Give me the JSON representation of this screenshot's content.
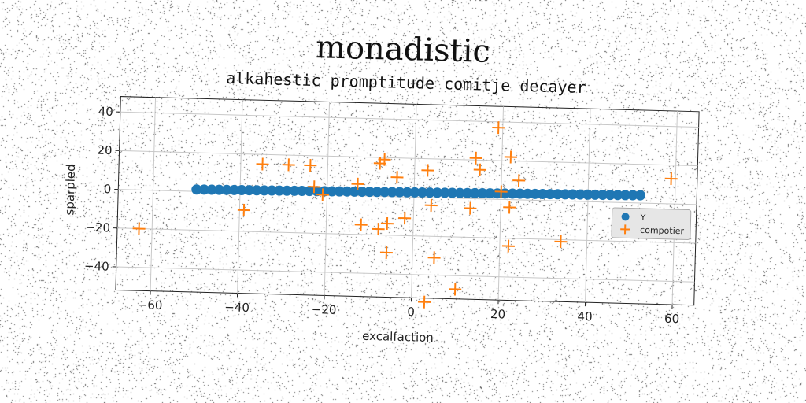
{
  "suptitle": "monadistic",
  "chart_data": {
    "type": "scatter",
    "title": "alkahestic promptitude comitje decayer",
    "xlabel": "excalfaction",
    "ylabel": "sparpled",
    "xlim": [
      -68,
      65
    ],
    "ylim": [
      -52,
      48
    ],
    "xticks": [
      -60,
      -40,
      -20,
      0,
      20,
      40,
      60
    ],
    "yticks": [
      -40,
      -20,
      0,
      20,
      40
    ],
    "xtick_labels": [
      "−60",
      "−40",
      "−20",
      "0",
      "20",
      "40",
      "60"
    ],
    "ytick_labels": [
      "−40",
      "−20",
      "0",
      "20",
      "40"
    ],
    "grid": true,
    "legend_position": "center-right",
    "series": [
      {
        "name": "Y",
        "marker": "circle",
        "color": "#1f77b4",
        "line": {
          "x_start": -50,
          "x_end": 52,
          "y_start": 1,
          "y_end": 4,
          "count": 60
        }
      },
      {
        "name": "compotier",
        "marker": "plus",
        "color": "#ff7f0e",
        "points": [
          [
            -63,
            -20
          ],
          [
            -39,
            -9
          ],
          [
            -35,
            15
          ],
          [
            -29,
            15
          ],
          [
            -24,
            15
          ],
          [
            -23,
            4
          ],
          [
            -21,
            0
          ],
          [
            -13,
            6
          ],
          [
            -12,
            -15
          ],
          [
            -8,
            -17
          ],
          [
            -8,
            17
          ],
          [
            -7,
            19
          ],
          [
            -6,
            -14
          ],
          [
            -6,
            -29
          ],
          [
            -4,
            10
          ],
          [
            -2,
            -11
          ],
          [
            3,
            14
          ],
          [
            3,
            -54
          ],
          [
            4,
            -4
          ],
          [
            5,
            -31
          ],
          [
            10,
            -47
          ],
          [
            13,
            -5
          ],
          [
            14,
            21
          ],
          [
            15,
            15
          ],
          [
            19,
            37
          ],
          [
            20,
            4
          ],
          [
            22,
            -4
          ],
          [
            22,
            -24
          ],
          [
            22,
            22
          ],
          [
            24,
            10
          ],
          [
            34,
            -21
          ],
          [
            59,
            13
          ]
        ]
      }
    ]
  }
}
